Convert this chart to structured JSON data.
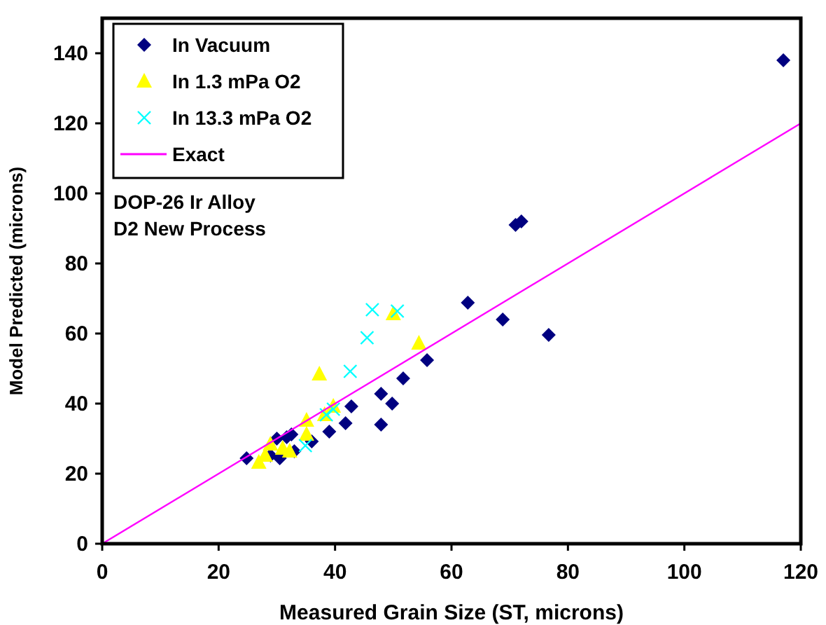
{
  "chart_data": {
    "type": "scatter",
    "xlabel": "Measured Grain Size (ST, microns)",
    "ylabel": "Model Predicted (microns)",
    "xlim": [
      0,
      120
    ],
    "ylim": [
      0,
      150
    ],
    "xticks": [
      0,
      20,
      40,
      60,
      80,
      100,
      120
    ],
    "yticks": [
      0,
      20,
      40,
      60,
      80,
      100,
      120,
      140
    ],
    "legend": "top left",
    "grid": false,
    "annotations": [
      "DOP-26 Ir Alloy",
      "D2 New Process"
    ],
    "series": [
      {
        "name": "In Vacuum",
        "color": "#000080",
        "marker": "diamond",
        "x": [
          117,
          71,
          72,
          62.8,
          68.8,
          76.7,
          55.8,
          51.7,
          47.9,
          49.8,
          42.8,
          41.8,
          47.9,
          39,
          36,
          32.5,
          31.7,
          30,
          33,
          30.5,
          28.9,
          24.8
        ],
        "values": [
          138,
          91,
          92,
          68.8,
          64,
          59.6,
          52.4,
          47.2,
          42.8,
          40,
          39.2,
          34.4,
          34,
          32,
          29.2,
          31.2,
          30.4,
          30,
          26.4,
          24.4,
          25.2,
          24.4
        ]
      },
      {
        "name": "In 1.3 mPa O2",
        "color": "#ffff00",
        "marker": "triangle",
        "x": [
          37.3,
          39.7,
          38.2,
          35.1,
          35.1,
          32.2,
          31,
          28.9,
          28,
          26.9,
          54.4,
          50
        ],
        "values": [
          48.4,
          39.2,
          36.8,
          35.2,
          31.2,
          26.4,
          27.2,
          28.4,
          25.2,
          23.2,
          57.2,
          65.6
        ]
      },
      {
        "name": "In 13.3 mPa O2",
        "color": "#00ffff",
        "marker": "cross",
        "x": [
          46.4,
          45.5,
          42.6,
          39.7,
          38.5,
          34.9,
          50.7
        ],
        "values": [
          66.8,
          58.8,
          49.2,
          38.4,
          36.8,
          28,
          66.4
        ]
      },
      {
        "name": "Exact",
        "type": "line",
        "color": "#ff00ff",
        "marker": "none",
        "x": [
          0,
          120
        ],
        "values": [
          0,
          120
        ]
      }
    ]
  }
}
